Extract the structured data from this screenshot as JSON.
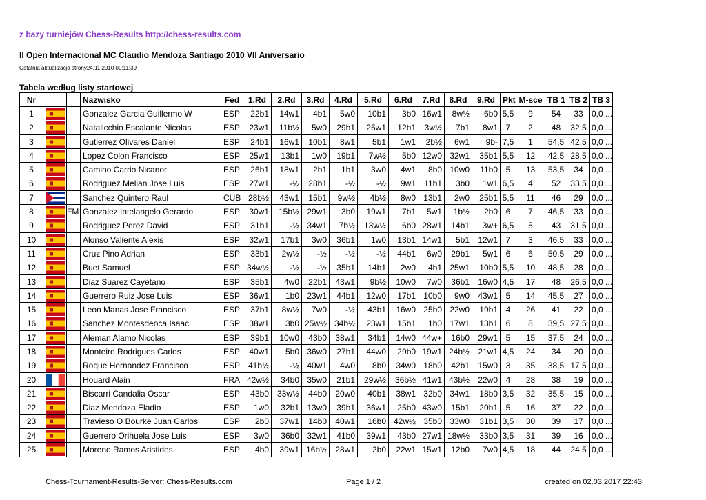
{
  "source": "z bazy turniejów Chess-Results http://chess-results.com",
  "title": "II Open Internacional MC Claudio Mendoza Santiago 2010 VII Aniversario",
  "updated": "Ostatnia aktualizacja strony24.11.2010 00:11:39",
  "section": "Tabela według listy startowej",
  "table": {
    "header": [
      "Nr",
      "Nazwisko",
      "Fed",
      "1.Rd",
      "2.Rd",
      "3.Rd",
      "4.Rd",
      "5.Rd",
      "6.Rd",
      "7.Rd",
      "8.Rd",
      "9.Rd",
      "Pkt",
      "M-sce",
      "TB 1",
      "TB 2",
      "TB 3"
    ],
    "rows": [
      {
        "nr": 1,
        "name": "Gonzalez Garcia Guillermo W",
        "fed": "ESP",
        "rounds": [
          "22b1",
          "14w1",
          "4b1",
          "5w0",
          "10b1",
          "3b0",
          "16w1",
          "8w½",
          "6b0"
        ],
        "pkt": "5,5",
        "msce": 9,
        "tb1": 54,
        "tb2": 33,
        "tb3": "0,0 ..."
      },
      {
        "nr": 2,
        "name": "Natalicchio Escalante Nicolas",
        "fed": "ESP",
        "rounds": [
          "23w1",
          "11b½",
          "5w0",
          "29b1",
          "25w1",
          "12b1",
          "3w½",
          "7b1",
          "8w1"
        ],
        "pkt": 7,
        "msce": 2,
        "tb1": 48,
        "tb2": "32,5",
        "tb3": "0,0 ..."
      },
      {
        "nr": 3,
        "name": "Gutierrez Olivares Daniel",
        "fed": "ESP",
        "rounds": [
          "24b1",
          "16w1",
          "10b1",
          "8w1",
          "5b1",
          "1w1",
          "2b½",
          "6w1",
          "9b-"
        ],
        "pkt": "7,5",
        "msce": 1,
        "tb1": "54,5",
        "tb2": "42,5",
        "tb3": "0,0 ..."
      },
      {
        "nr": 4,
        "name": "Lopez Colon Francisco",
        "fed": "ESP",
        "rounds": [
          "25w1",
          "13b1",
          "1w0",
          "19b1",
          "7w½",
          "5b0",
          "12w0",
          "32w1",
          "35b1"
        ],
        "pkt": "5,5",
        "msce": 12,
        "tb1": "42,5",
        "tb2": "28,5",
        "tb3": "0,0 ..."
      },
      {
        "nr": 5,
        "name": "Camino Carrio Nicanor",
        "fed": "ESP",
        "rounds": [
          "26b1",
          "18w1",
          "2b1",
          "1b1",
          "3w0",
          "4w1",
          "8b0",
          "10w0",
          "11b0"
        ],
        "pkt": 5,
        "msce": 13,
        "tb1": "53,5",
        "tb2": 34,
        "tb3": "0,0 ..."
      },
      {
        "nr": 6,
        "name": "Rodriguez Melian Jose Luis",
        "fed": "ESP",
        "rounds": [
          "27w1",
          "-½",
          "28b1",
          "-½",
          "-½",
          "9w1",
          "11b1",
          "3b0",
          "1w1"
        ],
        "pkt": "6,5",
        "msce": 4,
        "tb1": 52,
        "tb2": "33,5",
        "tb3": "0,0 ..."
      },
      {
        "nr": 7,
        "name": "Sanchez Quintero Raul",
        "fed": "CUB",
        "rounds": [
          "28b½",
          "43w1",
          "15b1",
          "9w½",
          "4b½",
          "8w0",
          "13b1",
          "2w0",
          "25b1"
        ],
        "pkt": "5,5",
        "msce": 11,
        "tb1": 46,
        "tb2": 29,
        "tb3": "0,0 ..."
      },
      {
        "nr": 8,
        "title": "FM",
        "name": "Gonzalez Intelangelo Gerardo",
        "fed": "ESP",
        "rounds": [
          "30w1",
          "15b½",
          "29w1",
          "3b0",
          "19w1",
          "7b1",
          "5w1",
          "1b½",
          "2b0"
        ],
        "pkt": 6,
        "msce": 7,
        "tb1": "46,5",
        "tb2": 33,
        "tb3": "0,0 ..."
      },
      {
        "nr": 9,
        "name": "Rodriguez Perez David",
        "fed": "ESP",
        "rounds": [
          "31b1",
          "-½",
          "34w1",
          "7b½",
          "13w½",
          "6b0",
          "28w1",
          "14b1",
          "3w+"
        ],
        "pkt": "6,5",
        "msce": 5,
        "tb1": 43,
        "tb2": "31,5",
        "tb3": "0,0 ..."
      },
      {
        "nr": 10,
        "name": "Alonso Valiente Alexis",
        "fed": "ESP",
        "rounds": [
          "32w1",
          "17b1",
          "3w0",
          "36b1",
          "1w0",
          "13b1",
          "14w1",
          "5b1",
          "12w1"
        ],
        "pkt": 7,
        "msce": 3,
        "tb1": "46,5",
        "tb2": 33,
        "tb3": "0,0 ..."
      },
      {
        "nr": 11,
        "name": "Cruz Pino Adrian",
        "fed": "ESP",
        "rounds": [
          "33b1",
          "2w½",
          "-½",
          "-½",
          "-½",
          "44b1",
          "6w0",
          "29b1",
          "5w1"
        ],
        "pkt": 6,
        "msce": 6,
        "tb1": "50,5",
        "tb2": 29,
        "tb3": "0,0 ..."
      },
      {
        "nr": 12,
        "name": "Buet Samuel",
        "fed": "ESP",
        "rounds": [
          "34w½",
          "-½",
          "-½",
          "35b1",
          "14b1",
          "2w0",
          "4b1",
          "25w1",
          "10b0"
        ],
        "pkt": "5,5",
        "msce": 10,
        "tb1": "48,5",
        "tb2": 28,
        "tb3": "0,0 ..."
      },
      {
        "nr": 13,
        "name": "Diaz Suarez Cayetano",
        "fed": "ESP",
        "rounds": [
          "35b1",
          "4w0",
          "22b1",
          "43w1",
          "9b½",
          "10w0",
          "7w0",
          "36b1",
          "16w0"
        ],
        "pkt": "4,5",
        "msce": 17,
        "tb1": 48,
        "tb2": "26,5",
        "tb3": "0,0 ..."
      },
      {
        "nr": 14,
        "name": "Guerrero Ruiz Jose Luis",
        "fed": "ESP",
        "rounds": [
          "36w1",
          "1b0",
          "23w1",
          "44b1",
          "12w0",
          "17b1",
          "10b0",
          "9w0",
          "43w1"
        ],
        "pkt": 5,
        "msce": 14,
        "tb1": "45,5",
        "tb2": 27,
        "tb3": "0,0 ..."
      },
      {
        "nr": 15,
        "name": "Leon Manas Jose Francisco",
        "fed": "ESP",
        "rounds": [
          "37b1",
          "8w½",
          "7w0",
          "-½",
          "43b1",
          "16w0",
          "25b0",
          "22w0",
          "19b1"
        ],
        "pkt": 4,
        "msce": 26,
        "tb1": 41,
        "tb2": 22,
        "tb3": "0,0 ..."
      },
      {
        "nr": 16,
        "name": "Sanchez Montesdeoca Isaac",
        "fed": "ESP",
        "rounds": [
          "38w1",
          "3b0",
          "25w½",
          "34b½",
          "23w1",
          "15b1",
          "1b0",
          "17w1",
          "13b1"
        ],
        "pkt": 6,
        "msce": 8,
        "tb1": "39,5",
        "tb2": "27,5",
        "tb3": "0,0 ..."
      },
      {
        "nr": 17,
        "name": "Aleman Alamo Nicolas",
        "fed": "ESP",
        "rounds": [
          "39b1",
          "10w0",
          "43b0",
          "38w1",
          "34b1",
          "14w0",
          "44w+",
          "16b0",
          "29w1"
        ],
        "pkt": 5,
        "msce": 15,
        "tb1": "37,5",
        "tb2": 24,
        "tb3": "0,0 ..."
      },
      {
        "nr": 18,
        "name": "Monteiro Rodrigues Carlos",
        "fed": "ESP",
        "rounds": [
          "40w1",
          "5b0",
          "36w0",
          "27b1",
          "44w0",
          "29b0",
          "19w1",
          "24b½",
          "21w1"
        ],
        "pkt": "4,5",
        "msce": 24,
        "tb1": 34,
        "tb2": 20,
        "tb3": "0,0 ..."
      },
      {
        "nr": 19,
        "name": "Roque Hernandez Francisco",
        "fed": "ESP",
        "rounds": [
          "41b½",
          "-½",
          "40w1",
          "4w0",
          "8b0",
          "34w0",
          "18b0",
          "42b1",
          "15w0"
        ],
        "pkt": 3,
        "msce": 35,
        "tb1": "38,5",
        "tb2": "17,5",
        "tb3": "0,0 ..."
      },
      {
        "nr": 20,
        "name": "Houard Alain",
        "fed": "FRA",
        "rounds": [
          "42w½",
          "34b0",
          "35w0",
          "21b1",
          "29w½",
          "36b½",
          "41w1",
          "43b½",
          "22w0"
        ],
        "pkt": 4,
        "msce": 28,
        "tb1": 38,
        "tb2": 19,
        "tb3": "0,0 ..."
      },
      {
        "nr": 21,
        "name": "Biscarri Candalia Oscar",
        "fed": "ESP",
        "rounds": [
          "43b0",
          "33w½",
          "44b0",
          "20w0",
          "40b1",
          "38w1",
          "32b0",
          "34w1",
          "18b0"
        ],
        "pkt": "3,5",
        "msce": 32,
        "tb1": "35,5",
        "tb2": 15,
        "tb3": "0,0 ..."
      },
      {
        "nr": 22,
        "name": "Diaz Mendoza Eladio",
        "fed": "ESP",
        "rounds": [
          "1w0",
          "32b1",
          "13w0",
          "39b1",
          "36w1",
          "25b0",
          "43w0",
          "15b1",
          "20b1"
        ],
        "pkt": 5,
        "msce": 16,
        "tb1": 37,
        "tb2": 22,
        "tb3": "0,0 ..."
      },
      {
        "nr": 23,
        "name": "Travieso O Bourke Juan Carlos",
        "fed": "ESP",
        "rounds": [
          "2b0",
          "37w1",
          "14b0",
          "40w1",
          "16b0",
          "42w½",
          "35b0",
          "33w0",
          "31b1"
        ],
        "pkt": "3,5",
        "msce": 30,
        "tb1": 39,
        "tb2": 17,
        "tb3": "0,0 ..."
      },
      {
        "nr": 24,
        "name": "Guerrero Orihuela Jose Luis",
        "fed": "ESP",
        "rounds": [
          "3w0",
          "36b0",
          "32w1",
          "41b0",
          "39w1",
          "43b0",
          "27w1",
          "18w½",
          "33b0"
        ],
        "pkt": "3,5",
        "msce": 31,
        "tb1": 39,
        "tb2": 16,
        "tb3": "0,0 ..."
      },
      {
        "nr": 25,
        "name": "Moreno Ramos Aristides",
        "fed": "ESP",
        "rounds": [
          "4b0",
          "39w1",
          "16b½",
          "28w1",
          "2b0",
          "22w1",
          "15w1",
          "12b0",
          "7w0"
        ],
        "pkt": "4,5",
        "msce": 18,
        "tb1": 44,
        "tb2": "24,5",
        "tb3": "0,0 ..."
      }
    ]
  },
  "footer": {
    "left": "Chess-Tournament-Results-Server: Chess-Results.com",
    "center": "Page 1 / 2",
    "right": "created on 02.03.2017 22:43"
  }
}
